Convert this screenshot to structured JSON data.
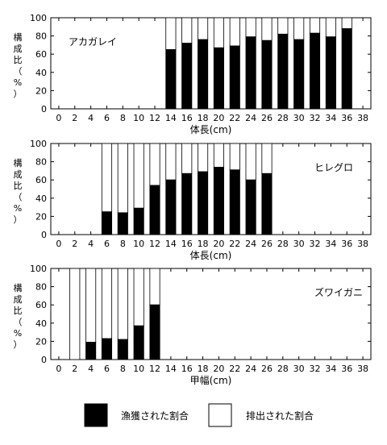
{
  "chart_data": [
    {
      "type": "bar",
      "stacked": true,
      "label": "アカガレイ",
      "xlabel": "体長(cm)",
      "ylabel": [
        "構",
        "成",
        "比",
        "（",
        "%",
        "）"
      ],
      "ylim": [
        0,
        100
      ],
      "xlim": [
        -1,
        39
      ],
      "x_ticks": [
        0,
        2,
        4,
        6,
        8,
        10,
        12,
        14,
        16,
        18,
        20,
        22,
        24,
        26,
        28,
        30,
        32,
        34,
        36,
        38
      ],
      "y_ticks": [
        0,
        20,
        40,
        60,
        80,
        100
      ],
      "x": [
        14,
        16,
        18,
        20,
        22,
        24,
        26,
        28,
        30,
        32,
        34,
        36
      ],
      "series": [
        {
          "name": "漁獲された割合",
          "values": [
            65,
            72,
            76,
            67,
            69,
            79,
            75,
            82,
            76,
            83,
            79,
            88
          ]
        },
        {
          "name": "排出された割合",
          "values": [
            35,
            28,
            24,
            33,
            31,
            21,
            25,
            18,
            24,
            17,
            21,
            12
          ]
        }
      ]
    },
    {
      "type": "bar",
      "stacked": true,
      "label": "ヒレグロ",
      "xlabel": "体長(cm)",
      "ylabel": [
        "構",
        "成",
        "比",
        "（",
        "%",
        "）"
      ],
      "ylim": [
        0,
        100
      ],
      "xlim": [
        -1,
        39
      ],
      "x_ticks": [
        0,
        2,
        4,
        6,
        8,
        10,
        12,
        14,
        16,
        18,
        20,
        22,
        24,
        26,
        28,
        30,
        32,
        34,
        36,
        38
      ],
      "y_ticks": [
        0,
        20,
        40,
        60,
        80,
        100
      ],
      "x": [
        6,
        8,
        10,
        12,
        14,
        16,
        18,
        20,
        22,
        24,
        26
      ],
      "series": [
        {
          "name": "漁獲された割合",
          "values": [
            25,
            24,
            29,
            54,
            60,
            67,
            69,
            74,
            71,
            60,
            67
          ]
        },
        {
          "name": "排出された割合",
          "values": [
            75,
            76,
            71,
            46,
            40,
            33,
            31,
            26,
            29,
            40,
            33
          ]
        }
      ]
    },
    {
      "type": "bar",
      "stacked": true,
      "label": "ズワイガニ",
      "xlabel": "甲幅(cm)",
      "ylabel": [
        "構",
        "成",
        "比",
        "（",
        "%",
        "）"
      ],
      "ylim": [
        0,
        100
      ],
      "xlim": [
        -1,
        39
      ],
      "x_ticks": [
        0,
        2,
        4,
        6,
        8,
        10,
        12,
        14,
        16,
        18,
        20,
        22,
        24,
        26,
        28,
        30,
        32,
        34,
        36,
        38
      ],
      "y_ticks": [
        0,
        20,
        40,
        60,
        80,
        100
      ],
      "x": [
        2,
        4,
        6,
        8,
        10,
        12
      ],
      "series": [
        {
          "name": "漁獲された割合",
          "values": [
            0,
            19,
            23,
            22,
            37,
            60
          ]
        },
        {
          "name": "排出された割合",
          "values": [
            100,
            81,
            77,
            78,
            63,
            40
          ]
        }
      ]
    }
  ],
  "legend": {
    "items": [
      {
        "label": "漁獲された割合",
        "color": "#000000"
      },
      {
        "label": "排出された割合",
        "color": "#ffffff"
      }
    ]
  }
}
